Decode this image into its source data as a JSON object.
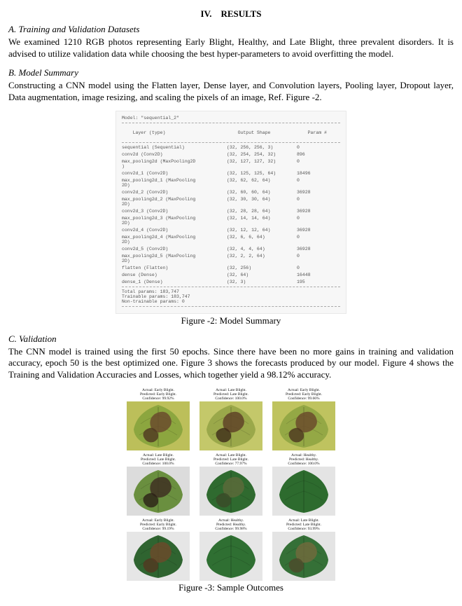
{
  "section_header": "IV. RESULTS",
  "a": {
    "heading": "A.   Training and Validation Datasets",
    "text": "We examined 1210 RGB photos representing Early Blight, Healthy, and Late Blight, three prevalent disorders. It is advised to utilize validation data while choosing the best hyper-parameters to avoid overfitting the model."
  },
  "b": {
    "heading": "B.   Model Summary",
    "text": "Constructing a CNN model using the Flatten layer, Dense layer, and Convolution layers, Pooling layer, Dropout layer, Data augmentation, image resizing, and scaling the pixels of an image, Ref. Figure -2.",
    "model_name": "Model: \"sequential_2\"",
    "cols": {
      "layer": "Layer (type)",
      "shape": "Output Shape",
      "param": "Param #"
    },
    "rows": [
      {
        "layer": "sequential (Sequential)",
        "shape": "(32, 256, 256, 3)",
        "param": "0"
      },
      {
        "layer": "conv2d (Conv2D)",
        "shape": "(32, 254, 254, 32)",
        "param": "896"
      },
      {
        "layer": "max_pooling2d (MaxPooling2D\n)",
        "shape": "(32, 127, 127, 32)",
        "param": "0"
      },
      {
        "layer": "conv2d_1 (Conv2D)",
        "shape": "(32, 125, 125, 64)",
        "param": "18496"
      },
      {
        "layer": "max_pooling2d_1 (MaxPooling\n2D)",
        "shape": "(32, 62, 62, 64)",
        "param": "0"
      },
      {
        "layer": "conv2d_2 (Conv2D)",
        "shape": "(32, 60, 60, 64)",
        "param": "36928"
      },
      {
        "layer": "max_pooling2d_2 (MaxPooling\n2D)",
        "shape": "(32, 30, 30, 64)",
        "param": "0"
      },
      {
        "layer": "conv2d_3 (Conv2D)",
        "shape": "(32, 28, 28, 64)",
        "param": "36928"
      },
      {
        "layer": "max_pooling2d_3 (MaxPooling\n2D)",
        "shape": "(32, 14, 14, 64)",
        "param": "0"
      },
      {
        "layer": "conv2d_4 (Conv2D)",
        "shape": "(32, 12, 12, 64)",
        "param": "36928"
      },
      {
        "layer": "max_pooling2d_4 (MaxPooling\n2D)",
        "shape": "(32, 6, 6, 64)",
        "param": "0"
      },
      {
        "layer": "conv2d_5 (Conv2D)",
        "shape": "(32, 4, 4, 64)",
        "param": "36928"
      },
      {
        "layer": "max_pooling2d_5 (MaxPooling\n2D)",
        "shape": "(32, 2, 2, 64)",
        "param": "0"
      },
      {
        "layer": "flatten (Flatten)",
        "shape": "(32, 256)",
        "param": "0"
      },
      {
        "layer": "dense (Dense)",
        "shape": "(32, 64)",
        "param": "16448"
      },
      {
        "layer": "dense_1 (Dense)",
        "shape": "(32, 3)",
        "param": "195"
      }
    ],
    "totals": [
      "Total params: 183,747",
      "Trainable params: 183,747",
      "Non-trainable params: 0"
    ],
    "caption": "Figure -2: Model Summary"
  },
  "c": {
    "heading": "C.   Validation",
    "text": "The CNN model is trained using the first 50 epochs. Since there have been no more gains in training and validation accuracy, epoch 50 is the best optimized one. Figure 3 shows the forecasts produced by our model. Figure 4 shows the Training and Validation Accuracies and Losses, which together yield a 98.12% accuracy.",
    "leaves": [
      {
        "actual": "Actual: Early Blight.",
        "pred": "Predicted: Early Blight.",
        "conf": "Confidence: 99.92%",
        "bg": "#bcbf5a",
        "leaf": "#8ca63f",
        "lesion": "#6a4b2d",
        "lesion2": "#4e3620"
      },
      {
        "actual": "Actual: Late Blight.",
        "pred": "Predicted: Late Blight.",
        "conf": "Confidence: 100.0%",
        "bg": "#c4c86a",
        "leaf": "#9aa84a",
        "lesion": "#5f4327",
        "lesion2": "#3d2c18"
      },
      {
        "actual": "Actual: Early Blight.",
        "pred": "Predicted: Early Blight.",
        "conf": "Confidence: 99.66%",
        "bg": "#bfc35f",
        "leaf": "#94a845",
        "lesion": "#6b4c2c",
        "lesion2": "#4b341e"
      },
      {
        "actual": "Actual: Late Blight.",
        "pred": "Predicted: Late Blight.",
        "conf": "Confidence: 100.0%",
        "bg": "#dcdcdc",
        "leaf": "#6a8f3f",
        "lesion": "#3e3022",
        "lesion2": "#2a1f16"
      },
      {
        "actual": "Actual: Late Blight.",
        "pred": "Predicted: Late Blight.",
        "conf": "Confidence: 77.97%",
        "bg": "#e2e2e2",
        "leaf": "#2f6a2f",
        "lesion": "#5a6a3a",
        "lesion2": "#3b4a28"
      },
      {
        "actual": "Actual: Healthy.",
        "pred": "Predicted: Healthy.",
        "conf": "Confidence: 100.0%",
        "bg": "#e4e4e4",
        "leaf": "#2d6b2e",
        "lesion": "",
        "lesion2": ""
      },
      {
        "actual": "Actual: Early Blight.",
        "pred": "Predicted: Early Blight.",
        "conf": "Confidence: 99.19%",
        "bg": "#e6e6e6",
        "leaf": "#2f6430",
        "lesion": "#6a4a2a",
        "lesion2": "#523720"
      },
      {
        "actual": "Actual: Healthy.",
        "pred": "Predicted: Healthy.",
        "conf": "Confidence: 99.98%",
        "bg": "#e6e6e6",
        "leaf": "#2f6f32",
        "lesion": "",
        "lesion2": ""
      },
      {
        "actual": "Actual: Late Blight.",
        "pred": "Predicted: Late Blight.",
        "conf": "Confidence: 93.99%",
        "bg": "#e4e4e4",
        "leaf": "#357037",
        "lesion": "#6f6a3c",
        "lesion2": "#4e4a2a"
      }
    ],
    "caption": "Figure -3: Sample Outcomes"
  }
}
